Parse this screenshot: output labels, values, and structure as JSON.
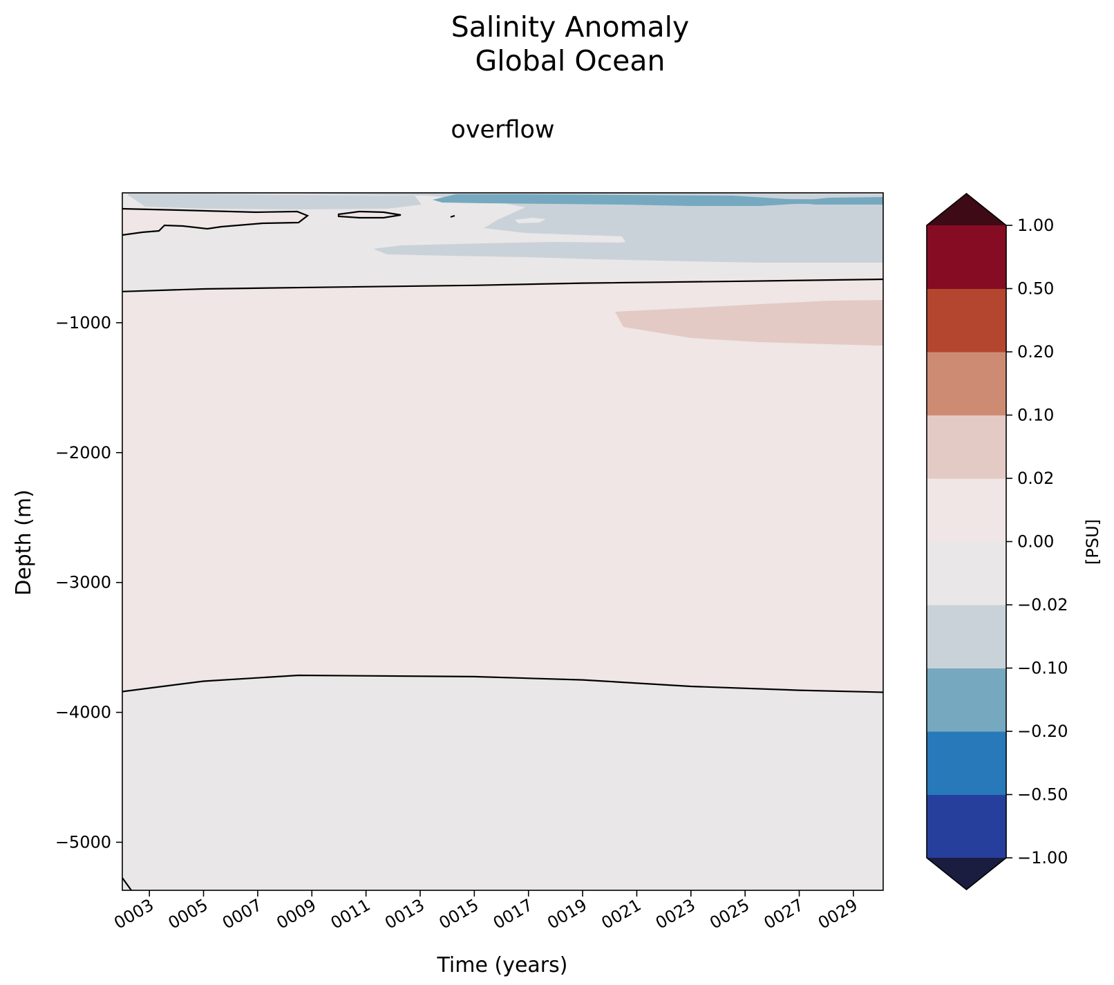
{
  "chart_data": {
    "type": "filled-contour",
    "title": "Salinity Anomaly",
    "title_line2": "Global Ocean",
    "subtitle": "overflow",
    "xlabel": "Time (years)",
    "ylabel": "Depth (m)",
    "x_ticks": [
      "0003",
      "0005",
      "0007",
      "0009",
      "0011",
      "0013",
      "0015",
      "0017",
      "0019",
      "0021",
      "0023",
      "0025",
      "0027",
      "0029"
    ],
    "x_tick_values": [
      3,
      5,
      7,
      9,
      11,
      13,
      15,
      17,
      19,
      21,
      23,
      25,
      27,
      29
    ],
    "xlim": [
      2.0,
      30.1
    ],
    "y_ticks": [
      "−1000",
      "−2000",
      "−3000",
      "−4000",
      "−5000"
    ],
    "y_tick_values": [
      -1000,
      -2000,
      -3000,
      -4000,
      -5000
    ],
    "ylim": [
      -5370,
      0
    ],
    "colorbar": {
      "label": "[PSU]",
      "levels": [
        "−1.00",
        "−0.50",
        "−0.20",
        "−0.10",
        "−0.02",
        "0.00",
        "0.02",
        "0.10",
        "0.20",
        "0.50",
        "1.00"
      ],
      "level_values": [
        -1.0,
        -0.5,
        -0.2,
        -0.1,
        -0.02,
        0.0,
        0.02,
        0.1,
        0.2,
        0.5,
        1.0
      ],
      "colors": [
        "#273f9c",
        "#2779ba",
        "#76a9bf",
        "#cad2d9",
        "#e9e7e8",
        "#efe6e5",
        "#e3cac4",
        "#cd8b74",
        "#b4462f",
        "#860c24"
      ],
      "under_color": "#1a1c40",
      "over_color": "#3e0a15",
      "extend": "both"
    },
    "zero_contour_depths_m": {
      "upper": [
        [
          2.0,
          -760
        ],
        [
          5,
          -740
        ],
        [
          9,
          -728
        ],
        [
          15,
          -712
        ],
        [
          19,
          -695
        ],
        [
          25,
          -680
        ],
        [
          30.1,
          -665
        ]
      ],
      "lower": [
        [
          2.0,
          -3840
        ],
        [
          5,
          -3760
        ],
        [
          8.5,
          -3715
        ],
        [
          15,
          -3725
        ],
        [
          19,
          -3750
        ],
        [
          23,
          -3800
        ],
        [
          27,
          -3830
        ],
        [
          30.1,
          -3845
        ]
      ]
    }
  }
}
